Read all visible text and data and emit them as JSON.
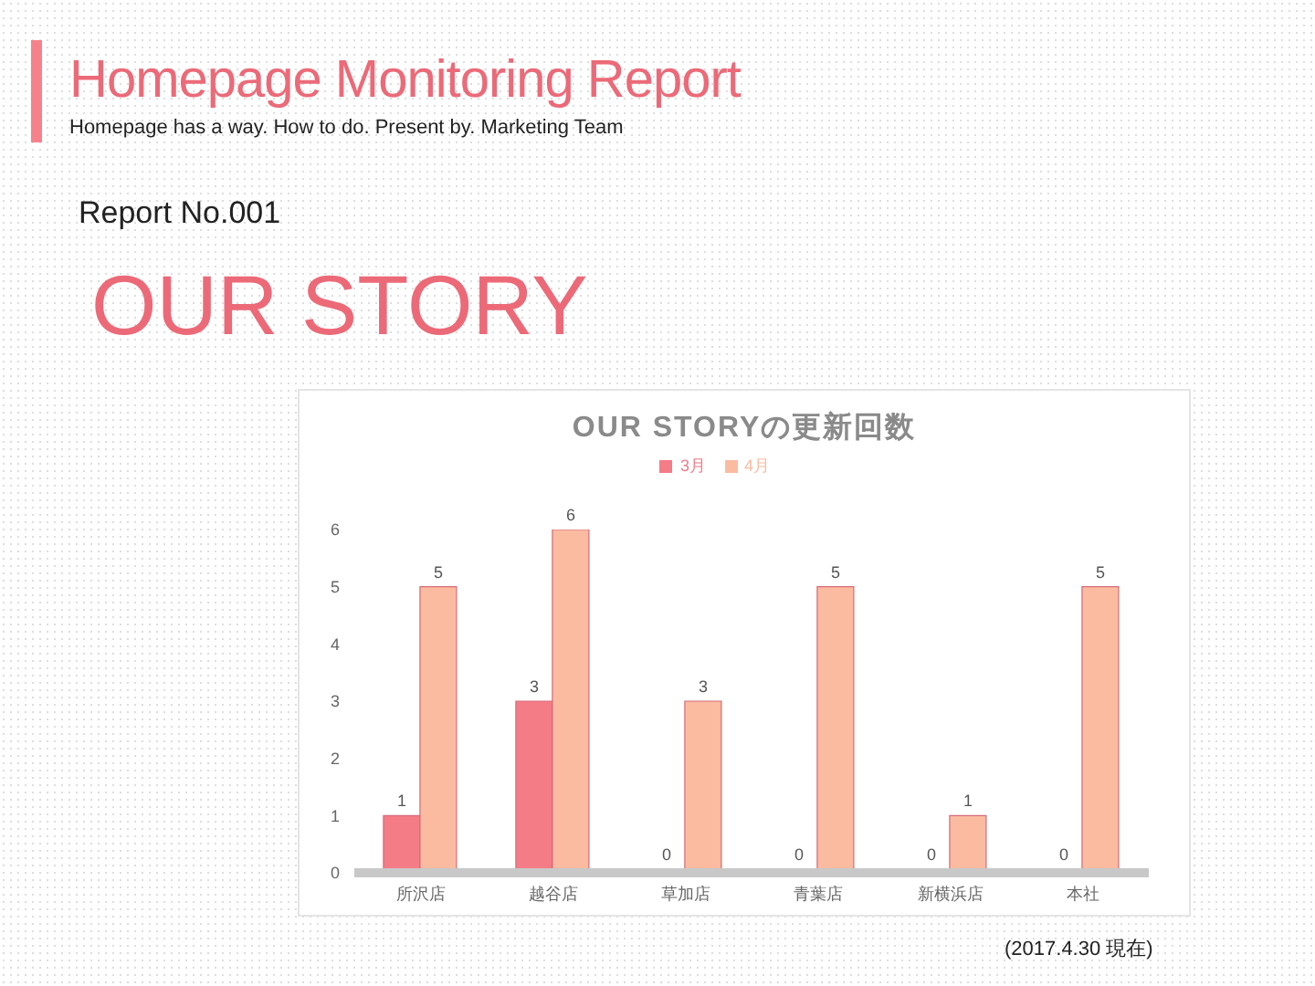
{
  "chart_data": {
    "type": "bar",
    "title": "OUR STORYの更新回数",
    "categories": [
      "所沢店",
      "越谷店",
      "草加店",
      "青葉店",
      "新横浜店",
      "本社"
    ],
    "series": [
      {
        "name": "3月",
        "color": "#f47c87",
        "values": [
          1,
          3,
          0,
          0,
          0,
          0
        ]
      },
      {
        "name": "4月",
        "color": "#fbbba1",
        "values": [
          5,
          6,
          3,
          5,
          1,
          5
        ]
      }
    ],
    "ylim": [
      0,
      6
    ],
    "yticks": [
      0,
      1,
      2,
      3,
      4,
      5,
      6
    ],
    "grid": false,
    "legend": "top",
    "data_labels": true,
    "annotations": [
      "Homepage Monitoring Report",
      "Homepage has a way. How to do. Present by. Marketing Team",
      "Report No.001",
      "OUR STORY",
      "(2017.4.30 現在)"
    ]
  }
}
